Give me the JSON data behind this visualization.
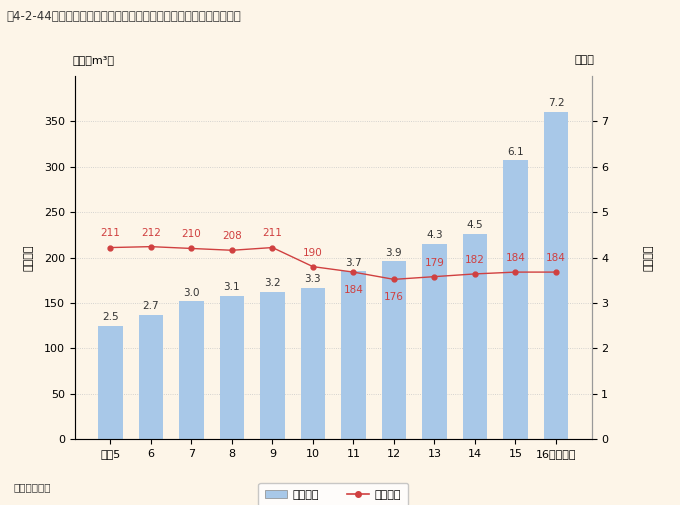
{
  "title": "围4-2-44　最終処分場の残余容量及び残余年数の推移（産業廃棄物）",
  "source_label": "資料：環境省",
  "years": [
    "平成5",
    "6",
    "7",
    "8",
    "9",
    "10",
    "11",
    "12",
    "13",
    "14",
    "15",
    "16（年度）"
  ],
  "bar_values": [
    125,
    137,
    152,
    158,
    162,
    167,
    185,
    196,
    215,
    226,
    307,
    360
  ],
  "bar_labels": [
    "2.5",
    "2.7",
    "3.0",
    "3.1",
    "3.2",
    "3.3",
    "3.7",
    "3.9",
    "4.3",
    "4.5",
    "6.1",
    "7.2"
  ],
  "line_values": [
    2.11,
    2.12,
    2.1,
    2.08,
    2.11,
    1.9,
    1.84,
    1.76,
    1.79,
    1.82,
    1.84,
    1.84
  ],
  "line_labels": [
    "211",
    "212",
    "210",
    "208",
    "211",
    "190",
    "184",
    "176",
    "179",
    "182",
    "184",
    "184"
  ],
  "bar_color": "#a8c8e8",
  "line_color": "#d04040",
  "ylabel_left_unit": "（百万m³）",
  "ylabel_left": "残余容量",
  "ylabel_right_unit": "（年）",
  "ylabel_right": "残余年数",
  "ylim_left": [
    0,
    400
  ],
  "ylim_right": [
    0,
    8
  ],
  "yticks_left": [
    0,
    50,
    100,
    150,
    200,
    250,
    300,
    350
  ],
  "yticks_right": [
    0,
    1,
    2,
    3,
    4,
    5,
    6,
    7
  ],
  "legend_bar": "残余年数",
  "legend_line": "残余容量",
  "background_color": "#fdf5e8",
  "grid_color": "#c8c8c8",
  "title_fontsize": 8.5,
  "axis_fontsize": 8,
  "label_fontsize": 7.5
}
